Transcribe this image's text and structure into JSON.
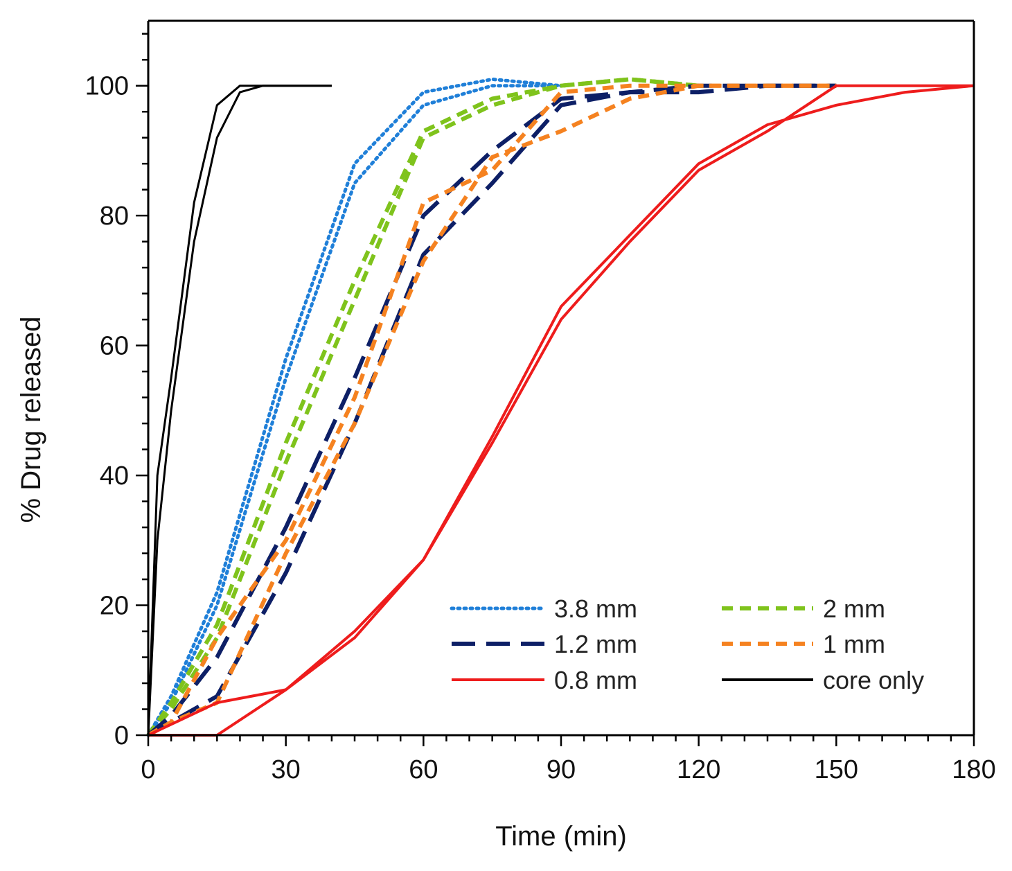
{
  "chart_data": {
    "type": "line",
    "title": "",
    "xlabel": "Time (min)",
    "ylabel": "% Drug released",
    "xlim": [
      0,
      180
    ],
    "ylim": [
      0,
      110
    ],
    "xticks": [
      "0",
      "30",
      "60",
      "90",
      "120",
      "150",
      "180"
    ],
    "yticks": [
      "0",
      "20",
      "40",
      "60",
      "80",
      "100"
    ],
    "grid": false,
    "legend_position": "bottom-right",
    "series": [
      {
        "name": "3.8 mm",
        "color": "#1f7fd8",
        "style": "dotted",
        "replicates": [
          {
            "x": [
              0,
              5,
              15,
              30,
              45,
              60,
              75,
              90
            ],
            "y": [
              0,
              6,
              22,
              58,
              88,
              99,
              101,
              100
            ]
          },
          {
            "x": [
              0,
              5,
              15,
              30,
              45,
              60,
              75,
              90
            ],
            "y": [
              0,
              5,
              20,
              55,
              85,
              97,
              100,
              100
            ]
          }
        ]
      },
      {
        "name": "2 mm",
        "color": "#7fc31c",
        "style": "short-dash",
        "replicates": [
          {
            "x": [
              0,
              5,
              15,
              30,
              45,
              60,
              75,
              90,
              105,
              120
            ],
            "y": [
              0,
              5,
              17,
              45,
              70,
              93,
              98,
              100,
              101,
              100
            ]
          },
          {
            "x": [
              0,
              5,
              15,
              30,
              45,
              60,
              75,
              90,
              105,
              120
            ],
            "y": [
              0,
              4,
              15,
              42,
              67,
              92,
              97,
              100,
              101,
              100
            ]
          }
        ]
      },
      {
        "name": "1.2 mm",
        "color": "#0d1f66",
        "style": "long-dash",
        "replicates": [
          {
            "x": [
              0,
              5,
              15,
              30,
              45,
              60,
              75,
              90,
              105,
              120,
              135,
              150
            ],
            "y": [
              0,
              3,
              12,
              32,
              55,
              80,
              90,
              98,
              99,
              100,
              100,
              100
            ]
          },
          {
            "x": [
              0,
              5,
              15,
              30,
              45,
              60,
              75,
              90,
              105,
              120,
              135,
              150
            ],
            "y": [
              0,
              2,
              6,
              25,
              48,
              74,
              85,
              97,
              99,
              99,
              100,
              100
            ]
          }
        ]
      },
      {
        "name": "1 mm",
        "color": "#f58220",
        "style": "short-dash",
        "replicates": [
          {
            "x": [
              0,
              5,
              15,
              30,
              45,
              60,
              75,
              90,
              105,
              120,
              135,
              150
            ],
            "y": [
              0,
              2,
              15,
              30,
              52,
              82,
              87,
              99,
              100,
              100,
              100,
              100
            ]
          },
          {
            "x": [
              0,
              5,
              15,
              30,
              45,
              60,
              75,
              90,
              105,
              120,
              135,
              150
            ],
            "y": [
              0,
              2,
              5,
              28,
              48,
              73,
              89,
              93,
              98,
              100,
              100,
              100
            ]
          }
        ]
      },
      {
        "name": "0.8 mm",
        "color": "#ee1c1c",
        "style": "solid",
        "replicates": [
          {
            "x": [
              0,
              15,
              30,
              45,
              60,
              75,
              90,
              105,
              120,
              135,
              150,
              165,
              180
            ],
            "y": [
              0,
              0,
              7,
              15,
              27,
              46,
              66,
              77,
              88,
              94,
              97,
              99,
              100
            ]
          },
          {
            "x": [
              0,
              15,
              30,
              45,
              60,
              75,
              90,
              105,
              120,
              135,
              150,
              165,
              180
            ],
            "y": [
              0,
              5,
              7,
              16,
              27,
              45,
              64,
              76,
              87,
              93,
              100,
              100,
              100
            ]
          }
        ]
      },
      {
        "name": "core only",
        "color": "#000000",
        "style": "solid",
        "replicates": [
          {
            "x": [
              0,
              2,
              5,
              10,
              15,
              20,
              25,
              30,
              40
            ],
            "y": [
              0,
              40,
              55,
              82,
              97,
              100,
              100,
              100,
              100
            ]
          },
          {
            "x": [
              0,
              2,
              5,
              10,
              15,
              20,
              25,
              30,
              40
            ],
            "y": [
              0,
              30,
              50,
              76,
              92,
              99,
              100,
              100,
              100
            ]
          }
        ]
      }
    ]
  }
}
